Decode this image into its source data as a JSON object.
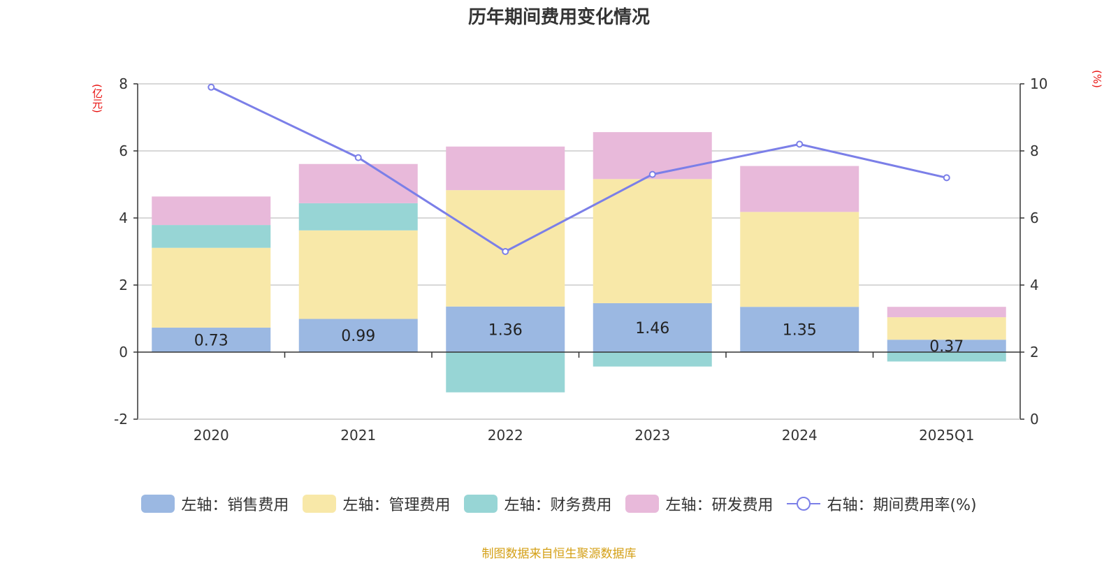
{
  "title": "历年期间费用变化情况",
  "source": "制图数据来自恒生聚源数据库",
  "chart_data": {
    "type": "bar",
    "stacked": true,
    "title": "历年期间费用变化情况",
    "categories": [
      "2020",
      "2021",
      "2022",
      "2023",
      "2024",
      "2025Q1"
    ],
    "left_axis": {
      "unit": "(亿元)",
      "ylim": [
        -2,
        8
      ],
      "ticks": [
        "-2",
        "0",
        "2",
        "4",
        "6",
        "8"
      ]
    },
    "right_axis": {
      "unit": "(%)",
      "ylim": [
        0,
        10
      ],
      "ticks": [
        "0",
        "2",
        "4",
        "6",
        "8",
        "10"
      ]
    },
    "series": [
      {
        "name": "左轴：销售费用",
        "color": "#9bb8e2",
        "axis": "left",
        "values": [
          0.73,
          0.99,
          1.36,
          1.46,
          1.35,
          0.37
        ],
        "labels": [
          "0.73",
          "0.99",
          "1.36",
          "1.46",
          "1.35",
          "0.37"
        ]
      },
      {
        "name": "左轴：管理费用",
        "color": "#f8e8a8",
        "axis": "left",
        "values": [
          2.38,
          2.64,
          3.47,
          3.7,
          2.83,
          0.67
        ]
      },
      {
        "name": "左轴：财务费用",
        "color": "#97d5d5",
        "axis": "left",
        "values": [
          0.68,
          0.81,
          -1.2,
          -0.43,
          0.0,
          -0.28
        ]
      },
      {
        "name": "左轴：研发费用",
        "color": "#e8b9da",
        "axis": "left",
        "values": [
          0.85,
          1.17,
          1.3,
          1.4,
          1.37,
          0.31
        ]
      },
      {
        "name": "右轴：期间费用率(%)",
        "color": "#7b7fe8",
        "axis": "right",
        "type": "line",
        "values": [
          9.9,
          7.8,
          5.0,
          7.3,
          8.2,
          7.2
        ]
      }
    ]
  }
}
